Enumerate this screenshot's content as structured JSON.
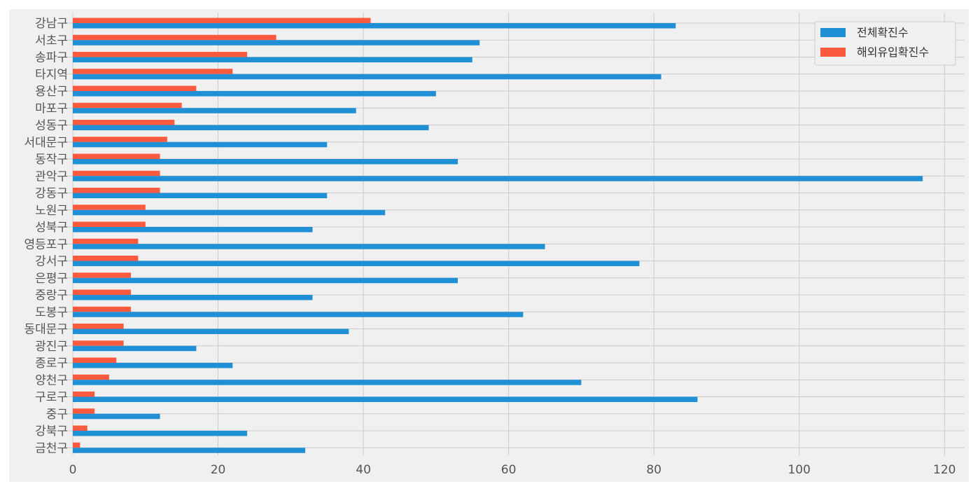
{
  "chart_data": {
    "type": "bar",
    "orientation": "horizontal",
    "title": "",
    "xlabel": "",
    "ylabel": "",
    "xlim": [
      0,
      122
    ],
    "xticks": [
      0,
      20,
      40,
      60,
      80,
      100,
      120
    ],
    "grid": true,
    "legend_position": "top-right",
    "categories": [
      "강남구",
      "서초구",
      "송파구",
      "타지역",
      "용산구",
      "마포구",
      "성동구",
      "서대문구",
      "동작구",
      "관악구",
      "강동구",
      "노원구",
      "성북구",
      "영등포구",
      "강서구",
      "은평구",
      "중랑구",
      "도봉구",
      "동대문구",
      "광진구",
      "종로구",
      "양천구",
      "구로구",
      "중구",
      "강북구",
      "금천구"
    ],
    "series": [
      {
        "name": "전체확진수",
        "color": "#1f8fd6",
        "values": [
          83,
          56,
          55,
          81,
          50,
          39,
          49,
          35,
          53,
          117,
          35,
          43,
          33,
          65,
          78,
          53,
          33,
          62,
          38,
          17,
          22,
          70,
          86,
          12,
          24,
          32
        ]
      },
      {
        "name": "해외유입확진수",
        "color": "#fc5a3e",
        "values": [
          41,
          28,
          24,
          22,
          17,
          15,
          14,
          13,
          12,
          12,
          12,
          10,
          10,
          9,
          9,
          8,
          8,
          8,
          7,
          7,
          6,
          5,
          3,
          3,
          2,
          1
        ]
      }
    ]
  },
  "style": {
    "background": "#f0f0f0",
    "grid_color": "#cbcbcb"
  }
}
